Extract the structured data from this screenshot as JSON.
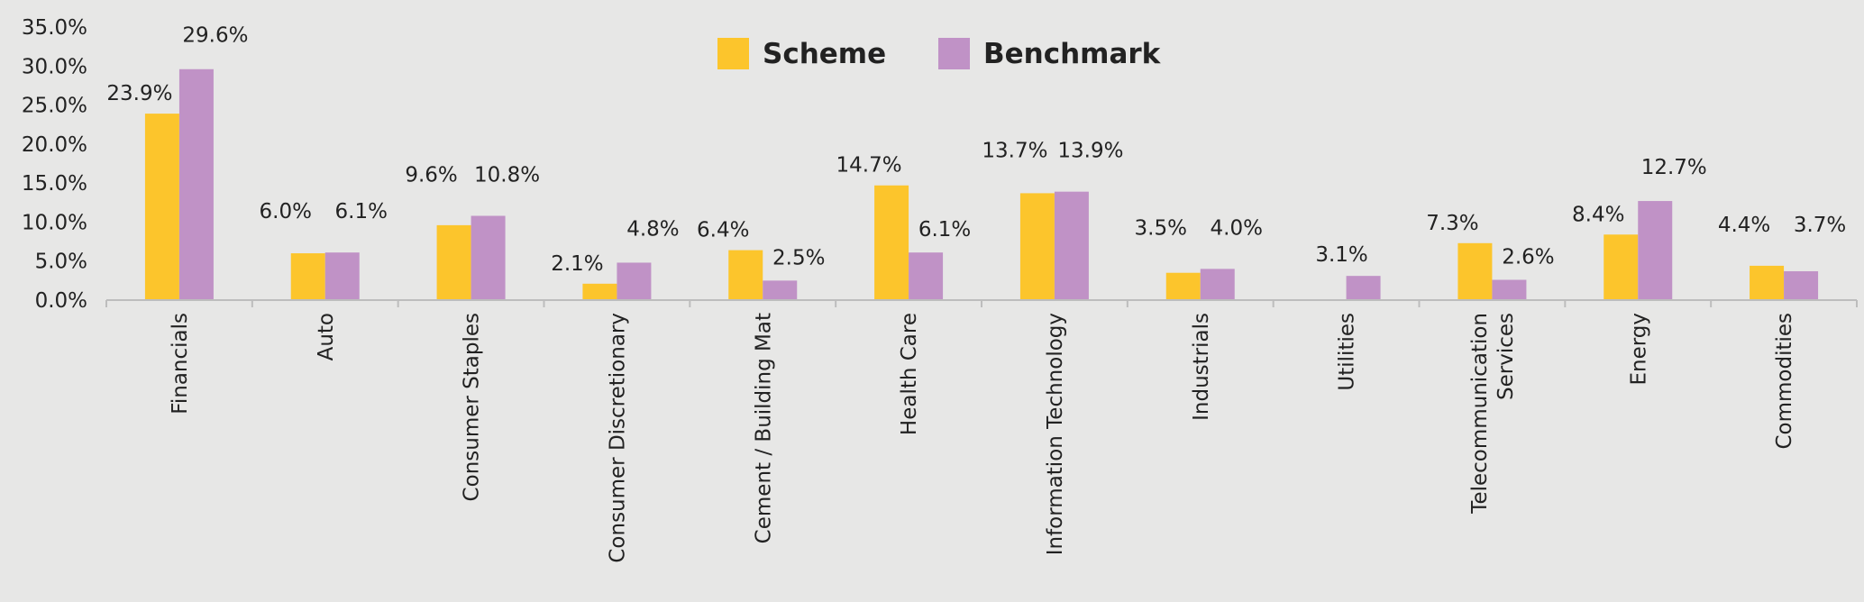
{
  "chart_data": {
    "type": "bar",
    "categories": [
      "Financials",
      "Auto",
      "Consumer Staples",
      "Consumer Discretionary",
      "Cement / Building Mat",
      "Health Care",
      "Information Technology",
      "Industrials",
      "Utilities",
      "Telecommunication Services",
      "Energy",
      "Commodities"
    ],
    "series": [
      {
        "name": "Scheme",
        "color": "#fcc52c",
        "values": [
          23.9,
          6.0,
          9.6,
          2.1,
          6.4,
          14.7,
          13.7,
          3.5,
          null,
          7.3,
          8.4,
          4.4
        ],
        "labels": [
          "23.9%",
          "6.0%",
          "9.6%",
          "2.1%",
          "6.4%",
          "14.7%",
          "13.7%",
          "3.5%",
          "",
          "7.3%",
          "8.4%",
          "4.4%"
        ]
      },
      {
        "name": "Benchmark",
        "color": "#c092c6",
        "values": [
          29.6,
          6.1,
          10.8,
          4.8,
          2.5,
          6.1,
          13.9,
          4.0,
          3.1,
          2.6,
          12.7,
          3.7
        ],
        "labels": [
          "29.6%",
          "6.1%",
          "10.8%",
          "4.8%",
          "2.5%",
          "6.1%",
          "13.9%",
          "4.0%",
          "3.1%",
          "2.6%",
          "12.7%",
          "3.7%"
        ]
      }
    ],
    "yticks": [
      "0.0%",
      "5.0%",
      "10.0%",
      "15.0%",
      "20.0%",
      "25.0%",
      "30.0%",
      "35.0%"
    ],
    "ylim": [
      0,
      35
    ],
    "title": "",
    "xlabel": "",
    "ylabel": "",
    "legend_position": "top-center",
    "grid": false
  }
}
